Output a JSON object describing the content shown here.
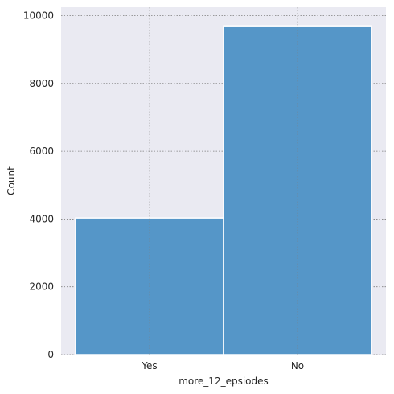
{
  "chart_data": {
    "type": "bar",
    "title": "",
    "xlabel": "more_12_epsiodes",
    "ylabel": "Count",
    "categories": [
      "Yes",
      "No"
    ],
    "values": [
      4030,
      9700
    ],
    "ylim": [
      0,
      10250
    ],
    "yticks": [
      0,
      2000,
      4000,
      6000,
      8000,
      10000
    ],
    "grid": true,
    "legend": "none",
    "colors": {
      "bar_fill": "#5596c8",
      "bar_stroke": "#ffffff",
      "plot_bg": "#eaeaf2",
      "grid": "#7f7f7f"
    }
  }
}
